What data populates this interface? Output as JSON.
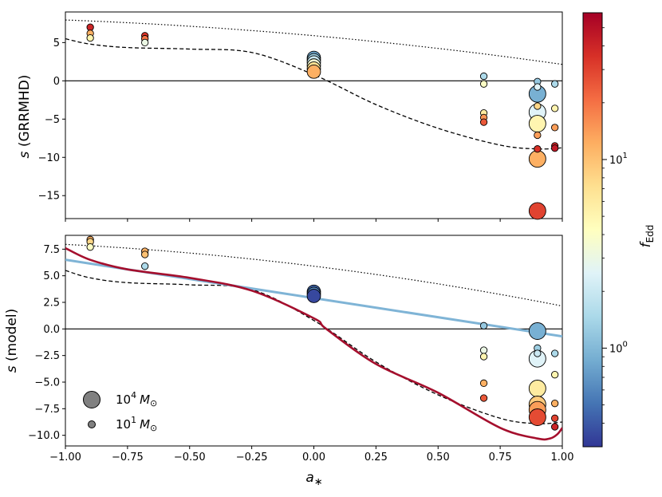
{
  "chart_data": [
    {
      "type": "scatter",
      "panel": "top",
      "xlim": [
        -1.0,
        1.0
      ],
      "ylim": [
        -18.0,
        9.0
      ],
      "ylabel": "s (GRRMHD)",
      "yticks": [
        5,
        0,
        -5,
        -10,
        -15
      ],
      "ytick_labels": [
        "5",
        "0",
        "−5",
        "−10",
        "−15"
      ],
      "points": [
        {
          "a": -0.9,
          "s": 7.0,
          "f": 40,
          "m": 1
        },
        {
          "a": -0.9,
          "s": 6.2,
          "f": 12,
          "m": 1
        },
        {
          "a": -0.9,
          "s": 5.6,
          "f": 5,
          "m": 1
        },
        {
          "a": -0.68,
          "s": 5.9,
          "f": 35,
          "m": 1
        },
        {
          "a": -0.68,
          "s": 5.5,
          "f": 20,
          "m": 1
        },
        {
          "a": -0.68,
          "s": 5.0,
          "f": 3,
          "m": 1
        },
        {
          "a": 0.0,
          "s": 3.0,
          "f": 0.8,
          "m": 3
        },
        {
          "a": 0.0,
          "s": 2.7,
          "f": 1.3,
          "m": 3
        },
        {
          "a": 0.0,
          "s": 2.4,
          "f": 2.0,
          "m": 3
        },
        {
          "a": 0.0,
          "s": 2.0,
          "f": 3.5,
          "m": 3
        },
        {
          "a": 0.0,
          "s": 1.6,
          "f": 7,
          "m": 3
        },
        {
          "a": 0.0,
          "s": 1.2,
          "f": 12,
          "m": 3
        },
        {
          "a": 0.684,
          "s": 0.6,
          "f": 1.5,
          "m": 1
        },
        {
          "a": 0.684,
          "s": -0.4,
          "f": 4,
          "m": 1
        },
        {
          "a": 0.684,
          "s": -4.2,
          "f": 6,
          "m": 1
        },
        {
          "a": 0.684,
          "s": -4.8,
          "f": 15,
          "m": 1
        },
        {
          "a": 0.684,
          "s": -5.4,
          "f": 25,
          "m": 1
        },
        {
          "a": 0.9,
          "s": -0.1,
          "f": 1.2,
          "m": 1
        },
        {
          "a": 0.9,
          "s": -0.8,
          "f": 2.5,
          "m": 1
        },
        {
          "a": 0.9,
          "s": -1.7,
          "f": 0.9,
          "m": 4
        },
        {
          "a": 0.9,
          "s": -3.3,
          "f": 8,
          "m": 1
        },
        {
          "a": 0.9,
          "s": -4.1,
          "f": 2.5,
          "m": 4
        },
        {
          "a": 0.9,
          "s": -5.6,
          "f": 5,
          "m": 4
        },
        {
          "a": 0.9,
          "s": -7.1,
          "f": 14,
          "m": 1
        },
        {
          "a": 0.9,
          "s": -8.9,
          "f": 35,
          "m": 1
        },
        {
          "a": 0.9,
          "s": -10.2,
          "f": 12,
          "m": 4
        },
        {
          "a": 0.9,
          "s": -17.0,
          "f": 30,
          "m": 4
        },
        {
          "a": 0.97,
          "s": -0.4,
          "f": 1.5,
          "m": 1
        },
        {
          "a": 0.97,
          "s": -3.6,
          "f": 5,
          "m": 1
        },
        {
          "a": 0.97,
          "s": -6.1,
          "f": 14,
          "m": 1
        },
        {
          "a": 0.97,
          "s": -8.5,
          "f": 40,
          "m": 1
        },
        {
          "a": 0.97,
          "s": -8.8,
          "f": 45,
          "m": 1
        }
      ]
    },
    {
      "type": "scatter",
      "panel": "bottom",
      "xlim": [
        -1.0,
        1.0
      ],
      "ylim": [
        -11.0,
        8.8
      ],
      "ylabel": "s (model)",
      "xlabel": "a∗",
      "yticks": [
        7.5,
        5.0,
        2.5,
        0.0,
        -2.5,
        -5.0,
        -7.5,
        -10.0
      ],
      "ytick_labels": [
        "7.5",
        "5.0",
        "2.5",
        "0.0",
        "−2.5",
        "−5.0",
        "−7.5",
        "−10.0"
      ],
      "xticks": [
        -1.0,
        -0.75,
        -0.5,
        -0.25,
        0.0,
        0.25,
        0.5,
        0.75,
        1.0
      ],
      "xtick_labels": [
        "−1.00",
        "−0.75",
        "−0.50",
        "−0.25",
        "0.00",
        "0.25",
        "0.50",
        "0.75",
        "1.00"
      ],
      "points": [
        {
          "a": -0.9,
          "s": 8.4,
          "f": 12,
          "m": 1
        },
        {
          "a": -0.9,
          "s": 8.2,
          "f": 8,
          "m": 1
        },
        {
          "a": -0.9,
          "s": 7.7,
          "f": 4,
          "m": 1
        },
        {
          "a": -0.68,
          "s": 7.3,
          "f": 12,
          "m": 1
        },
        {
          "a": -0.68,
          "s": 7.0,
          "f": 10,
          "m": 1
        },
        {
          "a": -0.68,
          "s": 5.9,
          "f": 1.5,
          "m": 1
        },
        {
          "a": 0.0,
          "s": 3.5,
          "f": 0.45,
          "m": 3
        },
        {
          "a": 0.0,
          "s": 3.3,
          "f": 0.6,
          "m": 3
        },
        {
          "a": 0.0,
          "s": 3.1,
          "f": 0.35,
          "m": 3
        },
        {
          "a": 0.684,
          "s": 0.3,
          "f": 1.2,
          "m": 1
        },
        {
          "a": 0.684,
          "s": -2.0,
          "f": 3,
          "m": 1
        },
        {
          "a": 0.684,
          "s": -2.6,
          "f": 5,
          "m": 1
        },
        {
          "a": 0.684,
          "s": -5.1,
          "f": 12,
          "m": 1
        },
        {
          "a": 0.684,
          "s": -6.5,
          "f": 25,
          "m": 1
        },
        {
          "a": 0.9,
          "s": -0.2,
          "f": 0.9,
          "m": 4
        },
        {
          "a": 0.9,
          "s": -1.8,
          "f": 1.3,
          "m": 1
        },
        {
          "a": 0.9,
          "s": -2.3,
          "f": 2.0,
          "m": 1
        },
        {
          "a": 0.9,
          "s": -2.8,
          "f": 2.5,
          "m": 4
        },
        {
          "a": 0.9,
          "s": -5.6,
          "f": 6,
          "m": 4
        },
        {
          "a": 0.9,
          "s": -7.1,
          "f": 9,
          "m": 4
        },
        {
          "a": 0.9,
          "s": -7.6,
          "f": 14,
          "m": 4
        },
        {
          "a": 0.9,
          "s": -8.3,
          "f": 28,
          "m": 4
        },
        {
          "a": 0.97,
          "s": -2.3,
          "f": 1.5,
          "m": 1
        },
        {
          "a": 0.97,
          "s": -4.3,
          "f": 5,
          "m": 1
        },
        {
          "a": 0.97,
          "s": -7.0,
          "f": 12,
          "m": 1
        },
        {
          "a": 0.97,
          "s": -8.4,
          "f": 30,
          "m": 1
        },
        {
          "a": 0.97,
          "s": -9.2,
          "f": 40,
          "m": 1
        }
      ]
    }
  ],
  "colorbar": {
    "label": "f_Edd",
    "label_main": "f",
    "label_sub": "Edd",
    "scale": "log",
    "range": [
      0.3,
      60
    ],
    "ticks": [
      {
        "value": 1,
        "base": "10",
        "exp": "0"
      },
      {
        "value": 10,
        "base": "10",
        "exp": "1"
      }
    ],
    "colors": [
      "#313695",
      "#4575b4",
      "#74add1",
      "#abd9e9",
      "#e0f3f8",
      "#ffffbf",
      "#fee090",
      "#fdae61",
      "#f46d43",
      "#d73027",
      "#a50026"
    ]
  },
  "legend": {
    "items": [
      {
        "base": "10",
        "exp": "4",
        "unit": "M",
        "sub": "⊙",
        "size": "large"
      },
      {
        "base": "10",
        "exp": "1",
        "unit": "M",
        "sub": "⊙",
        "size": "small"
      }
    ]
  },
  "lines": {
    "dotted_color": "#000000",
    "dashed_color": "#000000",
    "blue_line": {
      "color": "#7fb4d6",
      "from": [
        -1.0,
        6.5
      ],
      "to": [
        1.0,
        -0.7
      ]
    },
    "red_curve_color": "#a50f2d"
  }
}
